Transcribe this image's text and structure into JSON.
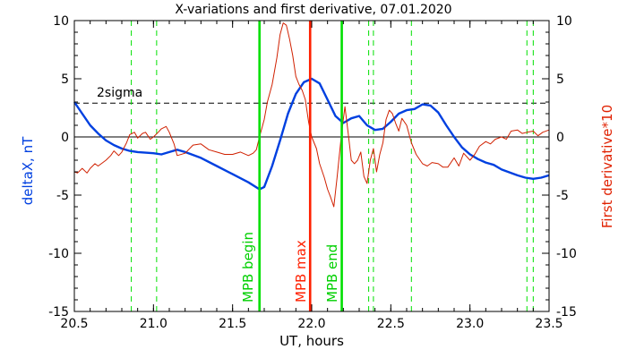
{
  "chart_data": {
    "type": "line",
    "title": "X-variations and first derivative, 07.01.2020",
    "xlabel": "UT, hours",
    "ylabel_left": "deltaX, nT",
    "ylabel_right": "First derivative*10",
    "xlim": [
      20.5,
      23.5
    ],
    "ylim": [
      -15,
      10
    ],
    "xticks": [
      "20.5",
      "21.0",
      "21.5",
      "22.0",
      "22.5",
      "23.0",
      "23.5"
    ],
    "yticks": [
      "10",
      "5",
      "0",
      "-5",
      "-10",
      "-15"
    ],
    "threshold_label": "2sigma",
    "threshold_value": 2.9,
    "event_labels": {
      "begin": "MPB begin",
      "max": "MPB max",
      "end": "MPB end"
    },
    "event_times": {
      "begin": 21.67,
      "max": 21.99,
      "end": 22.19
    },
    "dashed_marker_times": [
      20.86,
      21.02,
      22.36,
      22.39,
      22.63,
      23.36,
      23.4
    ],
    "colors": {
      "deltaX": "#0040e0",
      "derivative": "#d02000",
      "event_green": "#00e000",
      "event_red": "#ff2000",
      "dashed_green": "#00e000"
    },
    "series": [
      {
        "name": "deltaX, nT",
        "axis": "left",
        "x": [
          20.5,
          20.55,
          20.6,
          20.65,
          20.7,
          20.75,
          20.8,
          20.85,
          20.9,
          21.0,
          21.05,
          21.1,
          21.15,
          21.2,
          21.3,
          21.4,
          21.5,
          21.6,
          21.67,
          21.7,
          21.75,
          21.8,
          21.85,
          21.9,
          21.95,
          22.0,
          22.05,
          22.1,
          22.15,
          22.2,
          22.25,
          22.3,
          22.35,
          22.4,
          22.45,
          22.5,
          22.55,
          22.6,
          22.65,
          22.7,
          22.75,
          22.8,
          22.85,
          22.9,
          22.95,
          23.0,
          23.05,
          23.1,
          23.15,
          23.2,
          23.3,
          23.35,
          23.4,
          23.45,
          23.5
        ],
        "y": [
          3.0,
          2.0,
          1.0,
          0.3,
          -0.3,
          -0.7,
          -1.0,
          -1.2,
          -1.3,
          -1.4,
          -1.5,
          -1.3,
          -1.1,
          -1.3,
          -1.8,
          -2.5,
          -3.2,
          -3.9,
          -4.5,
          -4.3,
          -2.5,
          -0.3,
          2.0,
          3.7,
          4.7,
          5.0,
          4.6,
          3.2,
          1.8,
          1.2,
          1.6,
          1.8,
          1.0,
          0.6,
          0.7,
          1.3,
          2.0,
          2.3,
          2.4,
          2.8,
          2.7,
          2.1,
          1.0,
          0.0,
          -0.9,
          -1.5,
          -1.9,
          -2.2,
          -2.4,
          -2.8,
          -3.3,
          -3.5,
          -3.6,
          -3.5,
          -3.3
        ]
      },
      {
        "name": "First derivative*10",
        "axis": "right",
        "x": [
          20.5,
          20.52,
          20.55,
          20.58,
          20.6,
          20.63,
          20.65,
          20.68,
          20.7,
          20.73,
          20.75,
          20.78,
          20.8,
          20.83,
          20.85,
          20.88,
          20.9,
          20.93,
          20.95,
          20.98,
          21.0,
          21.03,
          21.05,
          21.08,
          21.1,
          21.13,
          21.15,
          21.2,
          21.25,
          21.3,
          21.35,
          21.4,
          21.45,
          21.5,
          21.55,
          21.6,
          21.63,
          21.65,
          21.67,
          21.7,
          21.72,
          21.75,
          21.78,
          21.8,
          21.82,
          21.84,
          21.86,
          21.88,
          21.9,
          21.92,
          21.94,
          21.96,
          21.98,
          22.0,
          22.03,
          22.05,
          22.08,
          22.1,
          22.12,
          22.14,
          22.16,
          22.19,
          22.21,
          22.23,
          22.25,
          22.27,
          22.29,
          22.31,
          22.33,
          22.35,
          22.37,
          22.39,
          22.41,
          22.43,
          22.45,
          22.47,
          22.49,
          22.51,
          22.53,
          22.55,
          22.57,
          22.6,
          22.63,
          22.66,
          22.7,
          22.73,
          22.76,
          22.8,
          22.83,
          22.86,
          22.9,
          22.93,
          22.96,
          23.0,
          23.03,
          23.06,
          23.1,
          23.13,
          23.16,
          23.2,
          23.23,
          23.26,
          23.3,
          23.33,
          23.36,
          23.4,
          23.43,
          23.46,
          23.5
        ],
        "y": [
          -3.0,
          -3.1,
          -2.7,
          -3.1,
          -2.7,
          -2.3,
          -2.5,
          -2.2,
          -2.0,
          -1.6,
          -1.2,
          -1.6,
          -1.3,
          -0.5,
          0.2,
          0.4,
          -0.1,
          0.3,
          0.4,
          -0.2,
          0.0,
          0.4,
          0.7,
          0.9,
          0.4,
          -0.6,
          -1.6,
          -1.4,
          -0.7,
          -0.6,
          -1.1,
          -1.3,
          -1.5,
          -1.5,
          -1.3,
          -1.6,
          -1.4,
          -1.1,
          0.0,
          1.5,
          3.0,
          4.5,
          6.8,
          8.8,
          9.8,
          9.6,
          8.4,
          7.0,
          5.2,
          4.5,
          4.0,
          3.2,
          1.3,
          0.0,
          -1.0,
          -2.3,
          -3.5,
          -4.5,
          -5.2,
          -6.0,
          -3.5,
          0.5,
          2.6,
          0.4,
          -2.0,
          -2.3,
          -2.0,
          -1.3,
          -3.4,
          -4.0,
          -2.0,
          -1.0,
          -3.0,
          -1.5,
          -0.5,
          1.5,
          2.3,
          2.0,
          1.2,
          0.5,
          1.6,
          1.0,
          -0.5,
          -1.5,
          -2.3,
          -2.5,
          -2.2,
          -2.3,
          -2.6,
          -2.6,
          -1.8,
          -2.5,
          -1.4,
          -2.0,
          -1.5,
          -0.8,
          -0.4,
          -0.6,
          -0.2,
          0.0,
          -0.2,
          0.5,
          0.6,
          0.3,
          0.4,
          0.5,
          0.1,
          0.4,
          0.6
        ]
      }
    ]
  }
}
